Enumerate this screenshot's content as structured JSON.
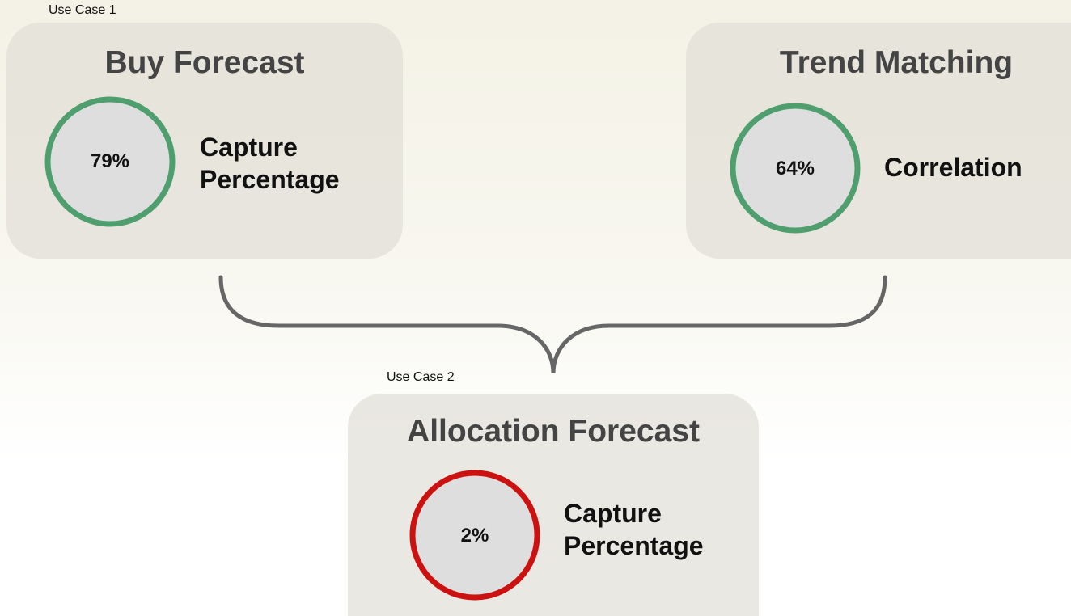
{
  "use_cases": [
    {
      "label": "Use Case 1"
    },
    {
      "label": "Use Case 2"
    }
  ],
  "cards": [
    {
      "title": "Buy Forecast",
      "value": "79%",
      "metric": "Capture Percentage",
      "status": "good"
    },
    {
      "title": "Trend Matching",
      "value": "64%",
      "metric": "Correlation",
      "status": "good"
    },
    {
      "title": "Allocation Forecast",
      "value": "2%",
      "metric": "Capture Percentage",
      "status": "bad"
    }
  ]
}
